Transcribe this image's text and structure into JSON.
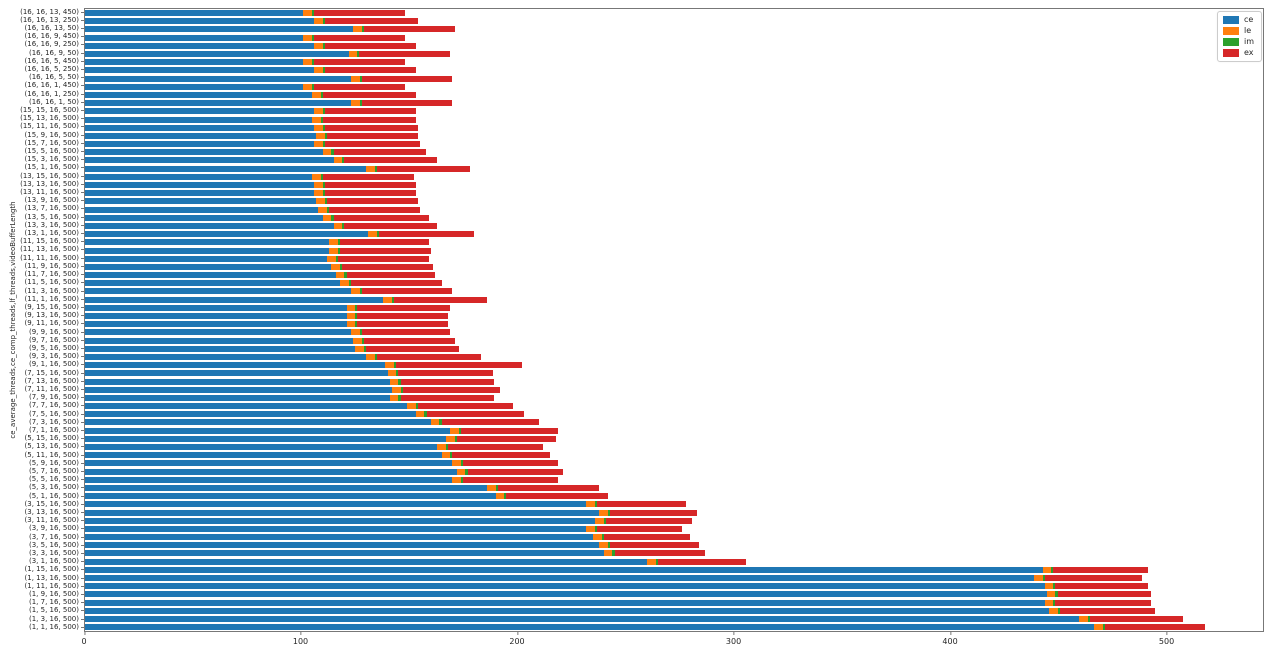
{
  "chart_data": {
    "type": "bar",
    "orientation": "horizontal",
    "stacked": true,
    "title": "",
    "xlabel": "",
    "ylabel": "ce_average_threads,ce_comp_threads,lf_threads,videoBufferLength",
    "xlim": [
      0,
      545
    ],
    "xticks": [
      0,
      100,
      200,
      300,
      400,
      500
    ],
    "grid": false,
    "legend_position": "upper right",
    "categories": [
      "(16, 16, 13, 450)",
      "(16, 16, 13, 250)",
      "(16, 16, 13, 50)",
      "(16, 16, 9, 450)",
      "(16, 16, 9, 250)",
      "(16, 16, 9, 50)",
      "(16, 16, 5, 450)",
      "(16, 16, 5, 250)",
      "(16, 16, 5, 50)",
      "(16, 16, 1, 450)",
      "(16, 16, 1, 250)",
      "(16, 16, 1, 50)",
      "(15, 15, 16, 500)",
      "(15, 13, 16, 500)",
      "(15, 11, 16, 500)",
      "(15, 9, 16, 500)",
      "(15, 7, 16, 500)",
      "(15, 5, 16, 500)",
      "(15, 3, 16, 500)",
      "(15, 1, 16, 500)",
      "(13, 15, 16, 500)",
      "(13, 13, 16, 500)",
      "(13, 11, 16, 500)",
      "(13, 9, 16, 500)",
      "(13, 7, 16, 500)",
      "(13, 5, 16, 500)",
      "(13, 3, 16, 500)",
      "(13, 1, 16, 500)",
      "(11, 15, 16, 500)",
      "(11, 13, 16, 500)",
      "(11, 11, 16, 500)",
      "(11, 9, 16, 500)",
      "(11, 7, 16, 500)",
      "(11, 5, 16, 500)",
      "(11, 3, 16, 500)",
      "(11, 1, 16, 500)",
      "(9, 15, 16, 500)",
      "(9, 13, 16, 500)",
      "(9, 11, 16, 500)",
      "(9, 9, 16, 500)",
      "(9, 7, 16, 500)",
      "(9, 5, 16, 500)",
      "(9, 3, 16, 500)",
      "(9, 1, 16, 500)",
      "(7, 15, 16, 500)",
      "(7, 13, 16, 500)",
      "(7, 11, 16, 500)",
      "(7, 9, 16, 500)",
      "(7, 7, 16, 500)",
      "(7, 5, 16, 500)",
      "(7, 3, 16, 500)",
      "(7, 1, 16, 500)",
      "(5, 15, 16, 500)",
      "(5, 13, 16, 500)",
      "(5, 11, 16, 500)",
      "(5, 9, 16, 500)",
      "(5, 7, 16, 500)",
      "(5, 5, 16, 500)",
      "(5, 3, 16, 500)",
      "(5, 1, 16, 500)",
      "(3, 15, 16, 500)",
      "(3, 13, 16, 500)",
      "(3, 11, 16, 500)",
      "(3, 9, 16, 500)",
      "(3, 7, 16, 500)",
      "(3, 5, 16, 500)",
      "(3, 3, 16, 500)",
      "(3, 1, 16, 500)",
      "(1, 15, 16, 500)",
      "(1, 13, 16, 500)",
      "(1, 11, 16, 500)",
      "(1, 9, 16, 500)",
      "(1, 7, 16, 500)",
      "(1, 5, 16, 500)",
      "(1, 3, 16, 500)",
      "(1, 1, 16, 500)"
    ],
    "series": [
      {
        "name": "ce",
        "color": "#1f77b4",
        "values": [
          101,
          106,
          124,
          101,
          106,
          122,
          101,
          106,
          123,
          101,
          105,
          123,
          106,
          105,
          106,
          107,
          106,
          110,
          115,
          130,
          105,
          106,
          106,
          107,
          108,
          110,
          115,
          131,
          113,
          113,
          112,
          114,
          116,
          118,
          123,
          138,
          121,
          121,
          121,
          123,
          124,
          125,
          130,
          139,
          140,
          141,
          142,
          141,
          149,
          153,
          160,
          169,
          167,
          163,
          165,
          170,
          172,
          170,
          186,
          190,
          232,
          238,
          236,
          232,
          235,
          238,
          240,
          260,
          443,
          439,
          444,
          445,
          444,
          446,
          460,
          467
        ]
      },
      {
        "name": "le",
        "color": "#ff7f0e",
        "values": [
          4,
          4,
          4,
          4,
          4,
          4,
          4,
          4,
          4,
          4,
          4,
          4,
          4,
          4,
          4,
          4,
          4,
          4,
          4,
          4,
          4,
          4,
          4,
          4,
          4,
          4,
          4,
          4,
          4,
          4,
          4,
          4,
          4,
          4,
          4,
          4,
          4,
          4,
          4,
          4,
          4,
          4,
          4,
          4,
          4,
          4,
          4,
          4,
          4,
          4,
          4,
          4,
          4,
          4,
          4,
          4,
          4,
          4,
          4,
          4,
          4,
          4,
          4,
          4,
          4,
          4,
          4,
          4,
          4,
          4,
          4,
          4,
          4,
          4,
          4,
          4
        ]
      },
      {
        "name": "im",
        "color": "#2ca02c",
        "values": [
          1,
          1,
          1,
          1,
          1,
          1,
          1,
          1,
          1,
          1,
          1,
          1,
          1,
          1,
          1,
          1,
          1,
          1,
          1,
          1,
          1,
          1,
          1,
          1,
          1,
          1,
          1,
          1,
          1,
          1,
          1,
          1,
          1,
          1,
          1,
          1,
          1,
          1,
          1,
          1,
          1,
          1,
          1,
          1,
          1,
          1,
          1,
          1,
          1,
          1,
          1,
          1,
          1,
          1,
          1,
          1,
          1,
          1,
          1,
          1,
          1,
          1,
          1,
          1,
          1,
          1,
          1,
          1,
          1,
          1,
          1,
          1,
          1,
          1,
          1,
          1
        ]
      },
      {
        "name": "ex",
        "color": "#d62728",
        "values": [
          42,
          43,
          42,
          42,
          42,
          42,
          42,
          42,
          42,
          42,
          43,
          42,
          42,
          43,
          43,
          42,
          44,
          43,
          43,
          43,
          42,
          42,
          42,
          42,
          42,
          44,
          43,
          44,
          41,
          42,
          42,
          42,
          41,
          42,
          42,
          43,
          43,
          42,
          42,
          41,
          42,
          43,
          48,
          58,
          44,
          43,
          45,
          43,
          44,
          45,
          45,
          45,
          46,
          44,
          45,
          44,
          44,
          44,
          47,
          47,
          41,
          40,
          40,
          39,
          40,
          41,
          42,
          41,
          44,
          45,
          43,
          43,
          44,
          44,
          43,
          46
        ]
      }
    ]
  }
}
